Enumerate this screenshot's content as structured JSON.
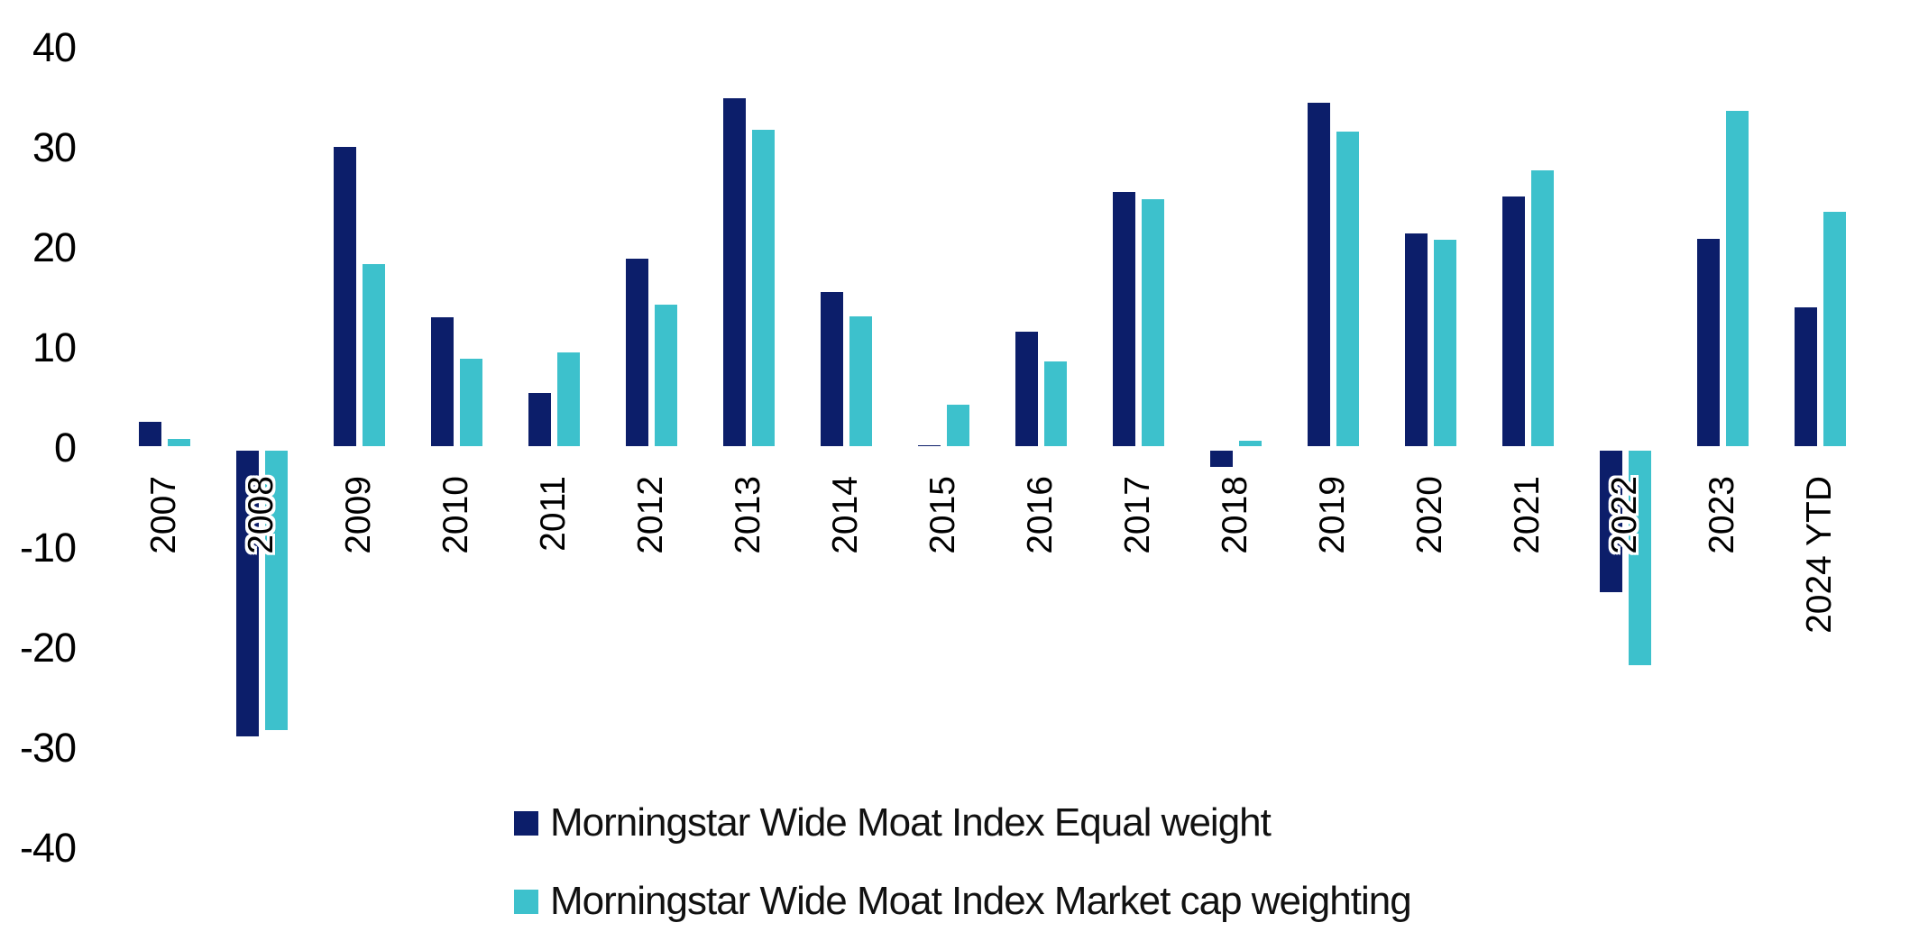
{
  "chart_data": {
    "type": "bar",
    "title": "",
    "xlabel": "",
    "ylabel": "",
    "categories": [
      "2007",
      "2008",
      "2009",
      "2010",
      "2011",
      "2012",
      "2013",
      "2014",
      "2015",
      "2016",
      "2017",
      "2018",
      "2019",
      "2020",
      "2021",
      "2022",
      "2023",
      "2024 YTD"
    ],
    "series": [
      {
        "name": "Morningstar Wide Moat Index Equal weight",
        "color": "#0c1e6a",
        "values": [
          2.4,
          -28.6,
          29.9,
          12.9,
          5.3,
          18.7,
          34.8,
          15.4,
          0.1,
          11.4,
          25.4,
          -1.6,
          34.3,
          21.3,
          25.0,
          -14.1,
          20.7,
          13.9
        ]
      },
      {
        "name": "Morningstar Wide Moat Index Market cap weighting",
        "color": "#3dc1cc",
        "values": [
          0.7,
          -27.9,
          18.2,
          8.7,
          9.4,
          14.1,
          31.6,
          13.0,
          4.1,
          8.5,
          24.7,
          0.5,
          31.4,
          20.6,
          27.6,
          -21.4,
          33.5,
          23.4
        ]
      }
    ],
    "ylim": [
      -40,
      40
    ],
    "yticks": [
      40,
      30,
      20,
      10,
      0,
      -10,
      -20,
      -30,
      -40
    ],
    "grid": false,
    "legend_position": "bottom-left",
    "background_color": "#ffffff",
    "text_color": "#000000"
  }
}
